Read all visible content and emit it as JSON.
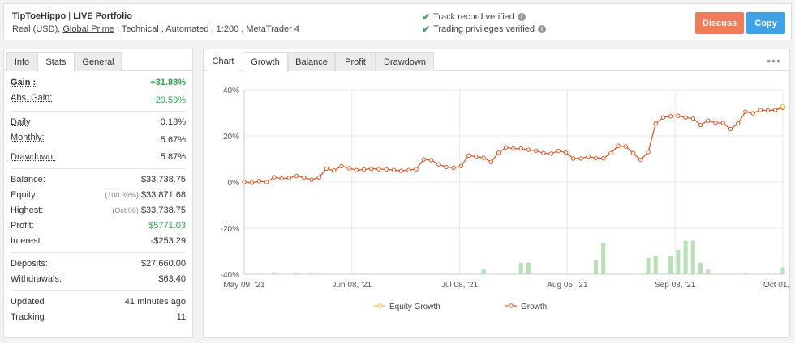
{
  "header": {
    "title_name": "TipToeHippo",
    "title_sep": " | ",
    "title_suffix": "LIVE Portfolio",
    "sub_pre": "Real (USD), ",
    "sub_broker": "Global Prime",
    "sub_post": " , Technical , Automated , 1:200 , MetaTrader 4",
    "verify_track": "Track record verified",
    "verify_trading": "Trading privileges verified",
    "discuss_label": "Discuss",
    "copy_label": "Copy",
    "colors": {
      "green": "#3aa655",
      "discuss": "#f07c5a",
      "copy": "#3fa1e6"
    }
  },
  "left_tabs": {
    "info": "Info",
    "stats": "Stats",
    "general": "General"
  },
  "stats": {
    "gain_label": "Gain :",
    "gain_value": "+31.88%",
    "abs_gain_label": "Abs. Gain:",
    "abs_gain_value": "+20.59%",
    "daily_label": "Daily",
    "daily_value": "0.18%",
    "monthly_label": "Monthly:",
    "monthly_value": "5.67%",
    "drawdown_label": "Drawdown:",
    "drawdown_value": "5.87%",
    "balance_label": "Balance:",
    "balance_value": "$33,738.75",
    "equity_label": "Equity:",
    "equity_note": "(100.39%)",
    "equity_value": "$33,871.68",
    "highest_label": "Highest:",
    "highest_note": "(Oct 06)",
    "highest_value": "$33,738.75",
    "profit_label": "Profit:",
    "profit_value": "$5771.03",
    "interest_label": "Interest",
    "interest_value": "-$253.29",
    "deposits_label": "Deposits:",
    "deposits_value": "$27,660.00",
    "withdrawals_label": "Withdrawals:",
    "withdrawals_value": "$63.40",
    "updated_label": "Updated",
    "updated_value": "41 minutes ago",
    "tracking_label": "Tracking",
    "tracking_value": "11"
  },
  "chart_tabs": {
    "chart": "Chart",
    "growth": "Growth",
    "balance": "Balance",
    "profit": "Profit",
    "drawdown": "Drawdown"
  },
  "chart_data": {
    "type": "line",
    "y_ticks": [
      "40%",
      "20%",
      "0%",
      "-20%",
      "-40%"
    ],
    "ylim": [
      -40,
      40
    ],
    "x_ticks": [
      "May 09, '21",
      "Jun 08, '21",
      "Jul 08, '21",
      "Aug 05, '21",
      "Sep 03, '21",
      "Oct 01, '21"
    ],
    "legend": [
      "Equity Growth",
      "Growth"
    ],
    "colors": {
      "equity": "#f5b82e",
      "growth": "#e8521f",
      "bars": "#b8e0b6",
      "grid": "#e8e8e8"
    },
    "series": [
      {
        "name": "Growth",
        "values": [
          0,
          -0.3,
          0.4,
          0,
          2.1,
          1.5,
          1.8,
          2.6,
          1.9,
          1,
          2,
          5.8,
          5,
          6.9,
          6,
          5.2,
          5.4,
          5.8,
          5.6,
          5.5,
          5.2,
          4.9,
          5.2,
          5.6,
          9.8,
          9.5,
          7.7,
          6.5,
          6.2,
          6.9,
          11.5,
          11,
          10.5,
          8.7,
          12.7,
          15,
          14.5,
          14.5,
          14,
          13.6,
          12.5,
          12.3,
          13.5,
          12.8,
          10.2,
          10.2,
          11.1,
          10.4,
          10.3,
          12.5,
          15.7,
          15.4,
          12.5,
          9.6,
          13,
          25.3,
          28,
          28.5,
          28.7,
          28,
          27.5,
          24.8,
          26.6,
          25.7,
          25.6,
          23,
          25.4,
          30.5,
          29.8,
          31.2,
          31,
          31.2,
          32.2
        ]
      },
      {
        "name": "Equity Growth",
        "values": [
          0,
          -0.3,
          0.4,
          0,
          2.1,
          1.5,
          1.8,
          2.6,
          1.9,
          1,
          2,
          5.8,
          5,
          6.9,
          6,
          5.2,
          5.4,
          5.8,
          5.6,
          5.5,
          5.2,
          4.9,
          5.2,
          5.6,
          9.8,
          9.5,
          7.7,
          6.5,
          6.2,
          6.9,
          11.5,
          11,
          10.5,
          8.7,
          12.7,
          15,
          14.5,
          14.5,
          14,
          13.6,
          12.5,
          12.3,
          13.5,
          12.8,
          10.2,
          10.2,
          11.1,
          10.4,
          10.3,
          12.5,
          15.7,
          15.4,
          12.5,
          9.6,
          13,
          25.3,
          28,
          28.5,
          28.7,
          28,
          27.5,
          24.8,
          26.6,
          25.7,
          25.6,
          23,
          25.4,
          30.5,
          29.8,
          31.2,
          31,
          31.7,
          32.7
        ]
      }
    ],
    "bars": [
      {
        "i": 4,
        "v": 0.8
      },
      {
        "i": 7,
        "v": 0.5
      },
      {
        "i": 9,
        "v": 0.5
      },
      {
        "i": 32,
        "v": 2.5
      },
      {
        "i": 37,
        "v": 5
      },
      {
        "i": 38,
        "v": 5
      },
      {
        "i": 47,
        "v": 6
      },
      {
        "i": 48,
        "v": 13.5
      },
      {
        "i": 54,
        "v": 7
      },
      {
        "i": 55,
        "v": 8
      },
      {
        "i": 57,
        "v": 8
      },
      {
        "i": 58,
        "v": 10.5
      },
      {
        "i": 59,
        "v": 14.5
      },
      {
        "i": 60,
        "v": 14.5
      },
      {
        "i": 61,
        "v": 5
      },
      {
        "i": 62,
        "v": 2
      },
      {
        "i": 67,
        "v": 0.5
      },
      {
        "i": 72,
        "v": 3
      }
    ]
  }
}
